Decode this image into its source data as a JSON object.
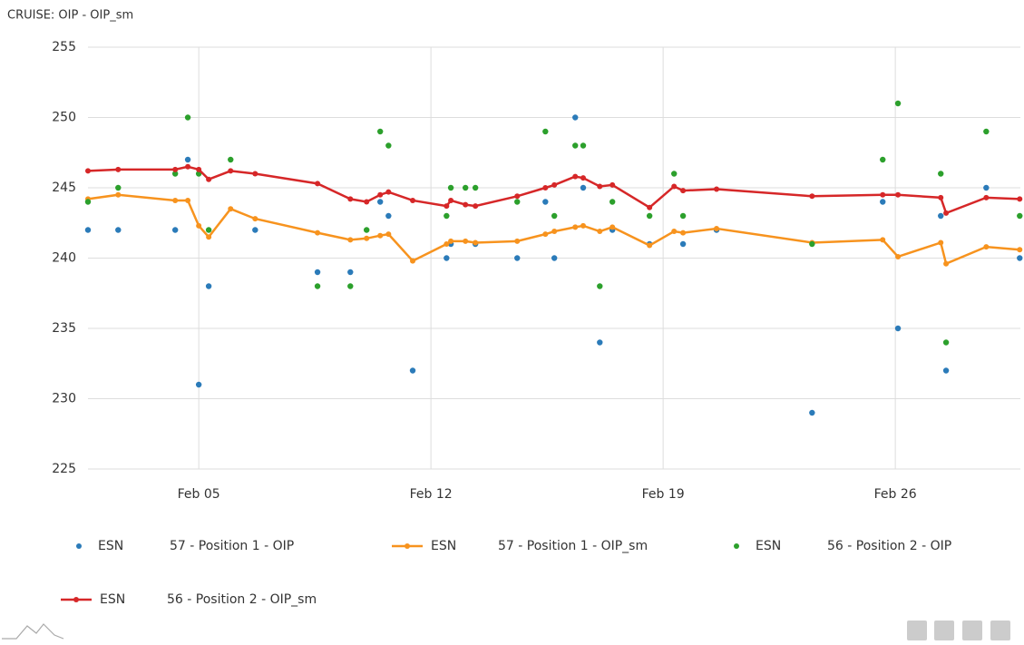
{
  "chart_data": {
    "type": "line",
    "title": "CRUISE: OIP - OIP_sm",
    "xlim": [
      1.66,
      29.77
    ],
    "xticks": [
      {
        "value": 5,
        "label": "Feb 05"
      },
      {
        "value": 12,
        "label": "Feb 12"
      },
      {
        "value": 19,
        "label": "Feb 19"
      },
      {
        "value": 26,
        "label": "Feb 26"
      }
    ],
    "ylim": [
      225,
      255
    ],
    "yticks": [
      225,
      230,
      235,
      240,
      245,
      250,
      255
    ],
    "grid": true,
    "series": [
      {
        "group": "ESN",
        "name": "57 - Position 1 - OIP",
        "kind": "scatter",
        "color": "#2b7bb9",
        "x": [
          1.66,
          2.57,
          4.29,
          4.67,
          5,
          5.3,
          6.7,
          8.58,
          9.57,
          10.47,
          10.72,
          11.45,
          12.47,
          12.6,
          13.34,
          14.6,
          15.45,
          15.72,
          16.35,
          16.59,
          17.09,
          17.47,
          18.59,
          19.6,
          20.61,
          23.49,
          25.62,
          26.08,
          27.37,
          27.53,
          28.74,
          29.75
        ],
        "values": [
          242,
          242,
          242,
          247,
          231,
          238,
          242,
          239,
          239,
          244,
          243,
          232,
          240,
          241,
          241,
          240,
          244,
          240,
          250,
          245,
          234,
          242,
          241,
          241,
          242,
          229,
          244,
          235,
          243,
          232,
          245,
          240
        ]
      },
      {
        "group": "ESN",
        "name": "57 - Position 1 - OIP_sm",
        "kind": "line",
        "color": "#f7931e",
        "x": [
          1.66,
          2.57,
          4.29,
          4.67,
          5,
          5.3,
          5.96,
          6.7,
          8.58,
          9.57,
          10.06,
          10.47,
          10.72,
          11.45,
          12.47,
          12.6,
          13.04,
          13.34,
          14.6,
          15.45,
          15.72,
          16.35,
          16.59,
          17.09,
          17.47,
          18.59,
          19.33,
          19.6,
          20.61,
          23.49,
          25.62,
          26.08,
          27.37,
          27.53,
          28.74,
          29.75
        ],
        "values": [
          244.2,
          244.5,
          244.1,
          244.1,
          242.3,
          241.5,
          243.5,
          242.8,
          241.8,
          241.3,
          241.4,
          241.6,
          241.7,
          239.8,
          241,
          241.2,
          241.2,
          241.1,
          241.2,
          241.7,
          241.9,
          242.2,
          242.3,
          241.9,
          242.2,
          240.9,
          241.9,
          241.8,
          242.1,
          241.1,
          241.3,
          240.1,
          241.1,
          239.6,
          240.8,
          240.6
        ]
      },
      {
        "group": "ESN",
        "name": "56 - Position 2 - OIP",
        "kind": "scatter",
        "color": "#2ca02c",
        "x": [
          1.66,
          2.57,
          4.29,
          4.67,
          5,
          5.3,
          5.96,
          8.58,
          9.57,
          10.06,
          10.47,
          10.72,
          12.47,
          12.6,
          13.04,
          13.34,
          14.6,
          15.45,
          15.72,
          16.35,
          16.59,
          17.09,
          17.47,
          18.59,
          19.33,
          19.6,
          23.49,
          25.62,
          26.08,
          27.37,
          27.53,
          28.74,
          29.75
        ],
        "values": [
          244,
          245,
          246,
          250,
          246,
          242,
          247,
          238,
          238,
          242,
          249,
          248,
          243,
          245,
          245,
          245,
          244,
          249,
          243,
          248,
          248,
          238,
          244,
          243,
          246,
          243,
          241,
          247,
          251,
          246,
          234,
          249,
          243
        ]
      },
      {
        "group": "ESN",
        "name": "56 - Position 2 - OIP_sm",
        "kind": "line",
        "color": "#d62728",
        "x": [
          1.66,
          2.57,
          4.29,
          4.67,
          5,
          5.3,
          5.96,
          6.7,
          8.58,
          9.57,
          10.06,
          10.47,
          10.72,
          11.45,
          12.47,
          12.6,
          13.04,
          13.34,
          14.6,
          15.45,
          15.72,
          16.35,
          16.59,
          17.09,
          17.47,
          18.59,
          19.33,
          19.6,
          20.61,
          23.49,
          25.62,
          26.08,
          27.37,
          27.53,
          28.74,
          29.75
        ],
        "values": [
          246.2,
          246.3,
          246.3,
          246.5,
          246.3,
          245.6,
          246.2,
          246,
          245.3,
          244.2,
          244,
          244.5,
          244.7,
          244.1,
          243.7,
          244.1,
          243.8,
          243.7,
          244.4,
          245,
          245.2,
          245.8,
          245.7,
          245.1,
          245.2,
          243.6,
          245.1,
          244.8,
          244.9,
          244.4,
          244.5,
          244.5,
          244.3,
          243.2,
          244.3,
          244.2
        ]
      }
    ]
  }
}
